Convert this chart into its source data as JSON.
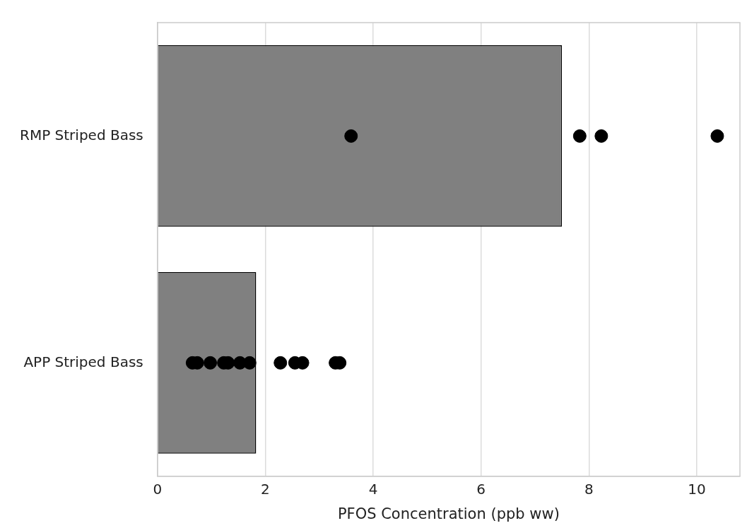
{
  "chart_data": {
    "type": "bar",
    "orientation": "horizontal",
    "xlabel": "PFOS Concentration (ppb ww)",
    "categories": [
      "RMP Striped Bass",
      "APP Striped Bass"
    ],
    "series": [
      {
        "color": "#808080",
        "values": [
          7.5,
          1.83
        ]
      },
      {
        "type": "scatter",
        "color": "#000000",
        "x": [
          "RMP Striped Bass",
          "RMP Striped Bass",
          "RMP Striped Bass",
          "RMP Striped Bass",
          "APP Striped Bass",
          "APP Striped Bass",
          "APP Striped Bass",
          "APP Striped Bass",
          "APP Striped Bass",
          "APP Striped Bass",
          "APP Striped Bass",
          "APP Striped Bass",
          "APP Striped Bass",
          "APP Striped Bass",
          "APP Striped Bass",
          "APP Striped Bass"
        ],
        "values": [
          3.59,
          7.83,
          8.23,
          10.38,
          0.65,
          0.74,
          0.98,
          1.23,
          1.31,
          1.53,
          1.71,
          2.28,
          2.55,
          2.69,
          3.3,
          3.38
        ]
      }
    ],
    "xlim": [
      0,
      10.8
    ],
    "xticks": [
      0,
      2,
      4,
      6,
      8,
      10
    ],
    "grid": "x",
    "legend": false,
    "marker": "circle"
  }
}
